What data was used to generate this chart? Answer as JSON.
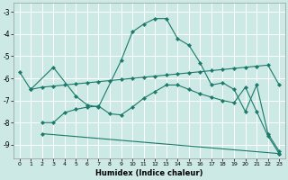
{
  "xlabel": "Humidex (Indice chaleur)",
  "bg_color": "#cce9e5",
  "line_color": "#1a7a6a",
  "grid_color": "#ffffff",
  "xlim": [
    -0.5,
    23.5
  ],
  "ylim": [
    -9.6,
    -2.6
  ],
  "yticks": [
    -3,
    -4,
    -5,
    -6,
    -7,
    -8,
    -9
  ],
  "xticks": [
    0,
    1,
    2,
    3,
    4,
    5,
    6,
    7,
    8,
    9,
    10,
    11,
    12,
    13,
    14,
    15,
    16,
    17,
    18,
    19,
    20,
    21,
    22,
    23
  ],
  "series": [
    {
      "x": [
        0,
        1,
        3,
        5,
        6,
        7,
        9,
        10,
        11,
        12,
        13,
        14,
        15,
        16,
        17,
        18,
        19,
        20,
        21,
        22,
        23
      ],
      "y": [
        -5.7,
        -6.5,
        -5.5,
        -6.8,
        -7.2,
        -7.3,
        -5.2,
        -3.9,
        -3.55,
        -3.3,
        -3.3,
        -4.2,
        -4.5,
        -5.3,
        -6.3,
        -6.2,
        -6.5,
        -7.5,
        -6.3,
        -8.5,
        -9.3
      ]
    },
    {
      "x": [
        1,
        2,
        3,
        4,
        5,
        6,
        7,
        8,
        9,
        10,
        11,
        12,
        13,
        14,
        15,
        16,
        17,
        18,
        19,
        20,
        21,
        22,
        23
      ],
      "y": [
        -6.5,
        -6.4,
        -6.35,
        -6.3,
        -6.25,
        -6.2,
        -6.15,
        -6.1,
        -6.05,
        -6.0,
        -5.95,
        -5.9,
        -5.85,
        -5.8,
        -5.75,
        -5.7,
        -5.65,
        -5.6,
        -5.55,
        -5.5,
        -5.45,
        -5.4,
        -6.3
      ]
    },
    {
      "x": [
        2,
        3,
        4,
        5,
        6,
        7,
        8,
        9,
        10,
        11,
        12,
        13,
        14,
        15,
        16,
        17,
        18,
        19,
        20,
        21,
        22,
        23
      ],
      "y": [
        -8.0,
        -8.0,
        -7.55,
        -7.4,
        -7.3,
        -7.25,
        -7.6,
        -7.65,
        -7.3,
        -6.9,
        -6.6,
        -6.3,
        -6.3,
        -6.5,
        -6.7,
        -6.85,
        -7.0,
        -7.1,
        -6.4,
        -7.5,
        -8.6,
        -9.4
      ]
    },
    {
      "x": [
        2,
        23
      ],
      "y": [
        -8.5,
        -9.4
      ]
    }
  ]
}
